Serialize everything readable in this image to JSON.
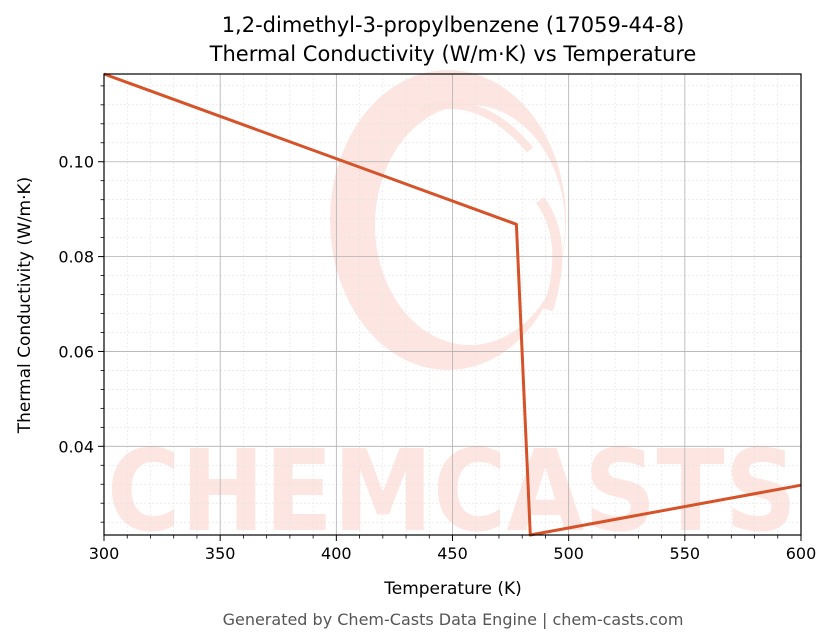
{
  "chart_data": {
    "type": "line",
    "title_line1": "1,2-dimethyl-3-propylbenzene (17059-44-8)",
    "title_line2": "Thermal Conductivity (W/m·K) vs Temperature",
    "xlabel": "Temperature (K)",
    "ylabel": "Thermal Conductivity (W/m·K)",
    "xlim": [
      300,
      600
    ],
    "ylim": [
      0.0213,
      0.1185
    ],
    "xticks": [
      300,
      350,
      400,
      450,
      500,
      550,
      600
    ],
    "xtick_labels": [
      "300",
      "350",
      "400",
      "450",
      "500",
      "550",
      "600"
    ],
    "yticks": [
      0.04,
      0.06,
      0.08,
      0.1
    ],
    "ytick_labels": [
      "0.04",
      "0.06",
      "0.08",
      "0.10"
    ],
    "grid": true,
    "series": [
      {
        "x": [
          300,
          477.5,
          483.5,
          600
        ],
        "y": [
          0.1185,
          0.0868,
          0.0213,
          0.0318
        ]
      }
    ]
  },
  "colors": {
    "line": "#d6532a",
    "watermark": "#fde2dc",
    "grid_major": "#b0b0b0",
    "grid_minor": "#e2e2e2"
  },
  "watermark": {
    "text": "CHEMCASTS"
  },
  "footer": {
    "text": "Generated by Chem-Casts Data Engine | chem-casts.com"
  }
}
